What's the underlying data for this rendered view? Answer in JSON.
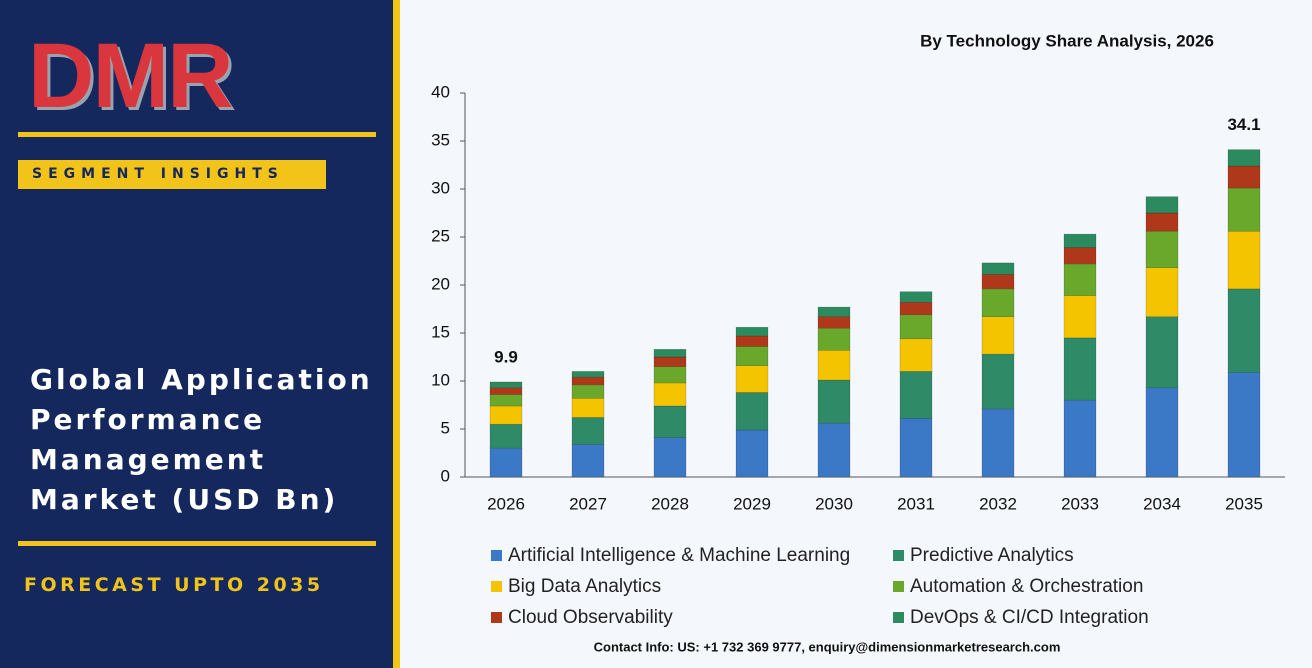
{
  "sidebar": {
    "logo": "DMR",
    "badge": "SEGMENT INSIGHTS",
    "title": "Global Application Performance Management Market (USD Bn)",
    "forecast": "FORECAST UPTO 2035"
  },
  "chart_data": {
    "type": "stacked_bar",
    "title": "By Technology Share Analysis, 2026",
    "categories": [
      "2026",
      "2027",
      "2028",
      "2029",
      "2030",
      "2031",
      "2032",
      "2033",
      "2034",
      "2035"
    ],
    "series": [
      {
        "name": "Artificial Intelligence & Machine Learning",
        "color": "#3b78c6",
        "values": [
          3.0,
          3.4,
          4.1,
          4.9,
          5.6,
          6.1,
          7.1,
          8.0,
          9.3,
          10.9
        ]
      },
      {
        "name": "Predictive Analytics",
        "color": "#2f8a68",
        "values": [
          2.5,
          2.8,
          3.3,
          3.9,
          4.5,
          4.9,
          5.7,
          6.5,
          7.4,
          8.7
        ]
      },
      {
        "name": "Big Data Analytics",
        "color": "#f5c400",
        "values": [
          1.9,
          2.0,
          2.4,
          2.8,
          3.1,
          3.4,
          3.9,
          4.4,
          5.1,
          6.0
        ]
      },
      {
        "name": "Automation & Orchestration",
        "color": "#6aa82c",
        "values": [
          1.2,
          1.4,
          1.7,
          2.0,
          2.3,
          2.5,
          2.9,
          3.3,
          3.8,
          4.5
        ]
      },
      {
        "name": "Cloud Observability",
        "color": "#b0381a",
        "values": [
          0.7,
          0.8,
          1.0,
          1.1,
          1.2,
          1.3,
          1.5,
          1.7,
          1.9,
          2.3
        ]
      },
      {
        "name": "DevOps & CI/CD Integration",
        "color": "#2b8a5e",
        "values": [
          0.6,
          0.6,
          0.8,
          0.9,
          1.0,
          1.1,
          1.2,
          1.4,
          1.7,
          1.7
        ]
      }
    ],
    "annotations": [
      {
        "x": "2026",
        "value": 9.9
      },
      {
        "x": "2035",
        "value": 34.1
      }
    ],
    "ylim": [
      0,
      40
    ],
    "yticks": [
      0,
      5,
      10,
      15,
      20,
      25,
      30,
      35,
      40
    ],
    "grid": false,
    "legend": "bottom"
  },
  "footer": "Contact Info: US: +1 732 369 9777, enquiry@dimensionmarketresearch.com"
}
